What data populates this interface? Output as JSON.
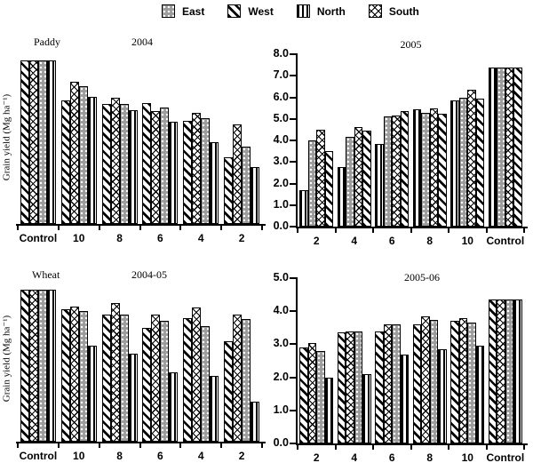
{
  "legend": {
    "items": [
      {
        "label": "East",
        "pattern": "east"
      },
      {
        "label": "West",
        "pattern": "west"
      },
      {
        "label": "North",
        "pattern": "north"
      },
      {
        "label": "South",
        "pattern": "south"
      }
    ]
  },
  "chart_data": [
    {
      "type": "bar",
      "title": "Paddy",
      "year_label": "2004",
      "ylabel": "Grain yield (Mg ha⁻¹)",
      "ylim": [
        0,
        8
      ],
      "ytick_step": 1,
      "y_axis_labels_visible": false,
      "legend_position": "figure-top",
      "categories": [
        "Control",
        "10",
        "8",
        "6",
        "4",
        "2"
      ],
      "series": [
        {
          "name": "West",
          "pattern": "west",
          "values": [
            7.6,
            5.75,
            5.55,
            5.6,
            4.8,
            3.1
          ]
        },
        {
          "name": "South",
          "pattern": "south",
          "values": [
            7.6,
            6.6,
            5.85,
            5.25,
            5.15,
            4.6
          ]
        },
        {
          "name": "East",
          "pattern": "east",
          "values": [
            7.6,
            6.4,
            5.55,
            5.4,
            4.9,
            3.6
          ]
        },
        {
          "name": "North",
          "pattern": "north",
          "values": [
            7.6,
            5.9,
            5.3,
            4.75,
            3.8,
            2.65
          ]
        }
      ]
    },
    {
      "type": "bar",
      "title": "",
      "year_label": "2005",
      "ylabel": "",
      "ylim": [
        0,
        8
      ],
      "ytick_step": 1,
      "y_axis_labels_visible": true,
      "legend_position": "figure-top",
      "categories": [
        "2",
        "4",
        "6",
        "8",
        "10",
        "Control"
      ],
      "series": [
        {
          "name": "North",
          "pattern": "north",
          "values": [
            1.7,
            2.75,
            3.85,
            5.45,
            5.85,
            7.4
          ]
        },
        {
          "name": "East",
          "pattern": "east",
          "values": [
            4.0,
            4.15,
            5.1,
            5.3,
            6.0,
            7.4
          ]
        },
        {
          "name": "South",
          "pattern": "south",
          "values": [
            4.5,
            4.6,
            5.15,
            5.5,
            6.35,
            7.4
          ]
        },
        {
          "name": "West",
          "pattern": "west",
          "values": [
            3.5,
            4.45,
            5.35,
            5.25,
            5.95,
            7.4
          ]
        }
      ]
    },
    {
      "type": "bar",
      "title": "Wheat",
      "year_label": "2004-05",
      "ylabel": "Grain yield (Mg ha⁻¹)",
      "ylim": [
        0,
        5
      ],
      "ytick_step": 1,
      "y_axis_labels_visible": false,
      "legend_position": "figure-top",
      "categories": [
        "Control",
        "10",
        "8",
        "6",
        "4",
        "2"
      ],
      "series": [
        {
          "name": "West",
          "pattern": "west",
          "values": [
            4.6,
            4.0,
            3.85,
            3.45,
            3.75,
            3.05
          ]
        },
        {
          "name": "South",
          "pattern": "south",
          "values": [
            4.6,
            4.1,
            4.2,
            3.85,
            4.05,
            3.85
          ]
        },
        {
          "name": "East",
          "pattern": "east",
          "values": [
            4.6,
            3.95,
            3.85,
            3.65,
            3.5,
            3.7
          ]
        },
        {
          "name": "North",
          "pattern": "north",
          "values": [
            4.6,
            2.9,
            2.65,
            2.1,
            2.0,
            1.2
          ]
        }
      ]
    },
    {
      "type": "bar",
      "title": "",
      "year_label": "2005-06",
      "ylabel": "",
      "ylim": [
        0,
        5
      ],
      "ytick_step": 1,
      "y_axis_labels_visible": true,
      "legend_position": "figure-top",
      "categories": [
        "2",
        "4",
        "6",
        "8",
        "10",
        "Control"
      ],
      "series": [
        {
          "name": "West",
          "pattern": "west",
          "values": [
            2.9,
            3.35,
            3.4,
            3.6,
            3.7,
            4.35
          ]
        },
        {
          "name": "South",
          "pattern": "south",
          "values": [
            3.05,
            3.4,
            3.6,
            3.85,
            3.8,
            4.35
          ]
        },
        {
          "name": "East",
          "pattern": "east",
          "values": [
            2.8,
            3.4,
            3.6,
            3.75,
            3.65,
            4.35
          ]
        },
        {
          "name": "North",
          "pattern": "north",
          "values": [
            2.0,
            2.1,
            2.7,
            2.85,
            2.95,
            4.35
          ]
        }
      ]
    }
  ]
}
